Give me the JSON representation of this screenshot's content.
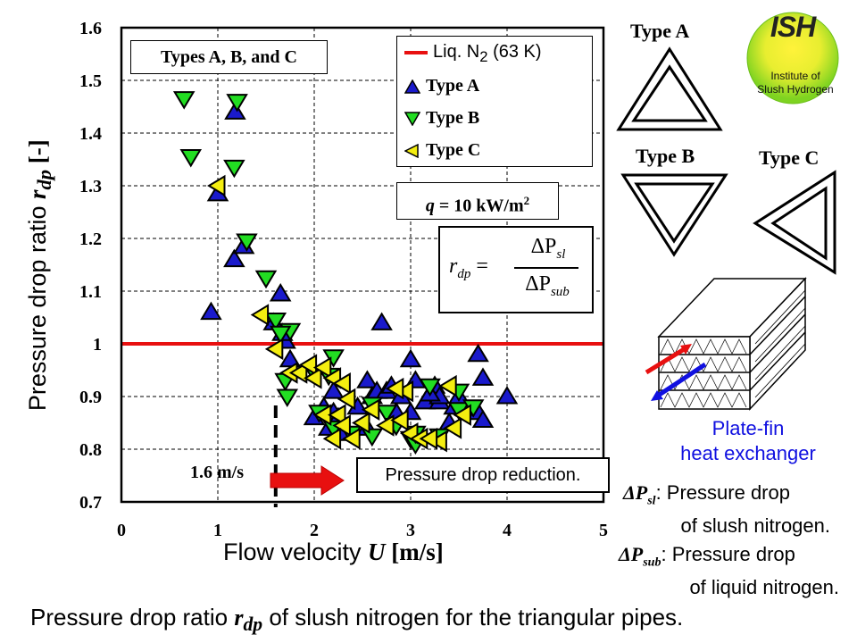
{
  "caption": {
    "prefix": "Pressure drop ratio ",
    "var": "r",
    "sub": "dp",
    "suffix": " of slush nitrogen for the triangular pipes."
  },
  "chart_data": {
    "type": "scatter",
    "title": "",
    "xlabel": {
      "text": "Flow velocity ",
      "var": "U",
      "unit": " [m/s]"
    },
    "ylabel": {
      "text": "Pressure drop ratio ",
      "var": "r",
      "sub": "dp",
      "unit": " [-]"
    },
    "xlim": [
      0,
      5
    ],
    "ylim": [
      0.7,
      1.6
    ],
    "xticks": [
      "0",
      "1",
      "2",
      "3",
      "4",
      "5"
    ],
    "yticks": [
      "0.7",
      "0.8",
      "0.9",
      "1",
      "1.1",
      "1.2",
      "1.3",
      "1.4",
      "1.5",
      "1.6"
    ],
    "grid": true,
    "legend_position": "top-right",
    "reference_line": {
      "name": "Liq. N2 (63 K)",
      "y": 1.0,
      "color": "#e81010"
    },
    "threshold_line": {
      "x": 1.6,
      "label": "1.6 m/s"
    },
    "series": [
      {
        "name": "Type A",
        "marker": "triangle-up",
        "color": "#1a1acc",
        "points": [
          [
            0.93,
            1.06
          ],
          [
            1.18,
            1.44
          ],
          [
            1.0,
            1.285
          ],
          [
            1.17,
            1.16
          ],
          [
            1.27,
            1.185
          ],
          [
            1.58,
            1.04
          ],
          [
            1.65,
            1.095
          ],
          [
            1.7,
            1.005
          ],
          [
            1.67,
            1.02
          ],
          [
            1.75,
            0.97
          ],
          [
            2.0,
            0.86
          ],
          [
            2.1,
            0.88
          ],
          [
            2.2,
            0.91
          ],
          [
            2.2,
            0.87
          ],
          [
            2.15,
            0.84
          ],
          [
            2.25,
            0.86
          ],
          [
            2.3,
            0.83
          ],
          [
            2.45,
            0.88
          ],
          [
            2.55,
            0.93
          ],
          [
            2.55,
            0.84
          ],
          [
            2.6,
            0.9
          ],
          [
            2.65,
            0.91
          ],
          [
            2.7,
            1.04
          ],
          [
            2.75,
            0.91
          ],
          [
            2.85,
            0.87
          ],
          [
            2.8,
            0.92
          ],
          [
            3.0,
            0.97
          ],
          [
            3.05,
            0.93
          ],
          [
            3.0,
            0.87
          ],
          [
            3.15,
            0.89
          ],
          [
            3.25,
            0.92
          ],
          [
            3.3,
            0.89
          ],
          [
            3.3,
            0.9
          ],
          [
            3.45,
            0.88
          ],
          [
            3.5,
            0.9
          ],
          [
            3.7,
            0.98
          ],
          [
            3.75,
            0.935
          ],
          [
            3.7,
            0.87
          ],
          [
            3.75,
            0.855
          ],
          [
            4.0,
            0.9
          ],
          [
            2.9,
            0.9
          ],
          [
            3.2,
            0.905
          ],
          [
            3.4,
            0.85
          ]
        ]
      },
      {
        "name": "Type B",
        "marker": "triangle-down",
        "color": "#22dd22",
        "points": [
          [
            0.65,
            1.465
          ],
          [
            1.2,
            1.46
          ],
          [
            0.72,
            1.355
          ],
          [
            1.17,
            1.335
          ],
          [
            1.3,
            1.195
          ],
          [
            1.5,
            1.125
          ],
          [
            1.6,
            1.045
          ],
          [
            1.75,
            1.025
          ],
          [
            1.65,
            1.02
          ],
          [
            1.7,
            0.93
          ],
          [
            1.72,
            0.9
          ],
          [
            2.0,
            0.945
          ],
          [
            2.2,
            0.975
          ],
          [
            2.15,
            0.94
          ],
          [
            2.05,
            0.87
          ],
          [
            2.2,
            0.84
          ],
          [
            2.38,
            0.83
          ],
          [
            2.6,
            0.885
          ],
          [
            2.75,
            0.87
          ],
          [
            2.85,
            0.845
          ],
          [
            3.0,
            0.82
          ],
          [
            3.05,
            0.81
          ],
          [
            3.2,
            0.92
          ],
          [
            3.3,
            0.825
          ],
          [
            3.5,
            0.91
          ],
          [
            3.5,
            0.875
          ],
          [
            3.65,
            0.88
          ],
          [
            3.05,
            0.83
          ],
          [
            2.6,
            0.825
          ]
        ]
      },
      {
        "name": "Type C",
        "marker": "triangle-left",
        "color": "#f4ee10",
        "points": [
          [
            1.0,
            1.3
          ],
          [
            1.45,
            1.055
          ],
          [
            1.6,
            0.99
          ],
          [
            1.75,
            0.945
          ],
          [
            1.85,
            0.945
          ],
          [
            1.95,
            0.96
          ],
          [
            2.0,
            0.935
          ],
          [
            2.1,
            0.955
          ],
          [
            2.2,
            0.935
          ],
          [
            2.3,
            0.925
          ],
          [
            2.35,
            0.895
          ],
          [
            2.1,
            0.865
          ],
          [
            2.25,
            0.865
          ],
          [
            2.3,
            0.845
          ],
          [
            2.4,
            0.82
          ],
          [
            2.5,
            0.85
          ],
          [
            2.6,
            0.875
          ],
          [
            2.75,
            0.845
          ],
          [
            2.9,
            0.855
          ],
          [
            3.0,
            0.83
          ],
          [
            3.1,
            0.82
          ],
          [
            3.3,
            0.815
          ],
          [
            3.45,
            0.84
          ],
          [
            3.55,
            0.865
          ],
          [
            3.4,
            0.92
          ],
          [
            2.95,
            0.91
          ],
          [
            2.85,
            0.915
          ],
          [
            3.2,
            0.82
          ],
          [
            2.2,
            0.82
          ]
        ]
      }
    ],
    "annotations": {
      "types_box": "Types A, B, and C",
      "heat_flux": {
        "var": "q",
        "text": " = 10 kW/m",
        "sup": "2"
      },
      "formula": {
        "lhs": "r",
        "lhs_sub": "dp",
        "num": "ΔP",
        "num_sub": "sl",
        "den": "ΔP",
        "den_sub": "sub"
      },
      "reduction_label": "Pressure drop reduction.",
      "threshold_label": "1.6 m/s"
    },
    "legend": {
      "line_label_prefix": "Liq. N",
      "line_label_sub": "2",
      "line_label_suffix": " (63 K)"
    }
  },
  "right_panel": {
    "type_a": "Type A",
    "type_b": "Type B",
    "type_c": "Type C",
    "logo": {
      "abbr": "ISH",
      "line1": "Institute of",
      "line2": "Slush Hydrogen"
    },
    "heat_exchanger": {
      "line1": "Plate-fin",
      "line2": "heat exchanger"
    },
    "definitions": [
      {
        "symbol": "ΔP",
        "sub": "sl",
        "text1": ": Pressure drop",
        "text2": "of slush nitrogen."
      },
      {
        "symbol": "ΔP",
        "sub": "sub",
        "text1": ": Pressure drop",
        "text2": "of liquid nitrogen."
      }
    ]
  }
}
